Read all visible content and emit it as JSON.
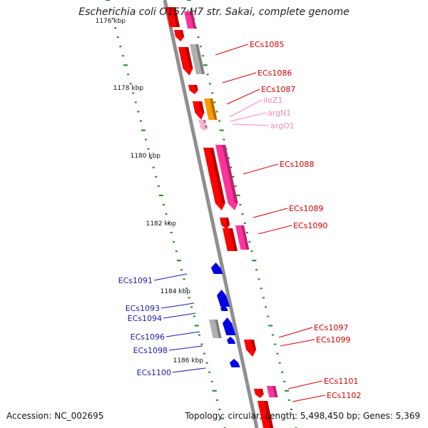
{
  "title": "Escherichia coli O157:H7 str. Sakai, complete genome",
  "accession_text": "Accession: NC_002695",
  "topology_text": "Topology: circular; Length: 5,498,450 bp; Genes: 5,369",
  "colors": {
    "backbone": "#8f8f8f",
    "tick": "#1a8a1a",
    "forward_cds": "#ff0000",
    "reverse_cds": "#0000e6",
    "rna": "#ff3399",
    "pseudo": "#b0b0b0",
    "trna": "#ffb0d0",
    "misc": "#ff9900",
    "label_forward": "#d40000",
    "label_reverse": "#1a1aa6",
    "label_trna": "#ff88bb"
  },
  "kbp_labels": [
    {
      "text": "1176 kbp",
      "slot": 0
    },
    {
      "text": "1178 kbp",
      "slot": 1
    },
    {
      "text": "1180 kbp",
      "slot": 2
    },
    {
      "text": "1182 kbp",
      "slot": 3
    },
    {
      "text": "1184 kbp",
      "slot": 4
    },
    {
      "text": "1186 kbp",
      "slot": 5
    }
  ],
  "forward_labels": [
    "ECs1085",
    "ECs1086",
    "ECs1087",
    "ECs1088",
    "ECs1089",
    "ECs1090",
    "ECs1097",
    "ECs1099",
    "ECs1101",
    "ECs1102"
  ],
  "trna_labels": [
    "ileZ1",
    "argN1",
    "argO1"
  ],
  "reverse_labels": [
    "ECs1091",
    "ECs1093",
    "ECs1094",
    "ECs1096",
    "ECs1098",
    "ECs1100"
  ]
}
